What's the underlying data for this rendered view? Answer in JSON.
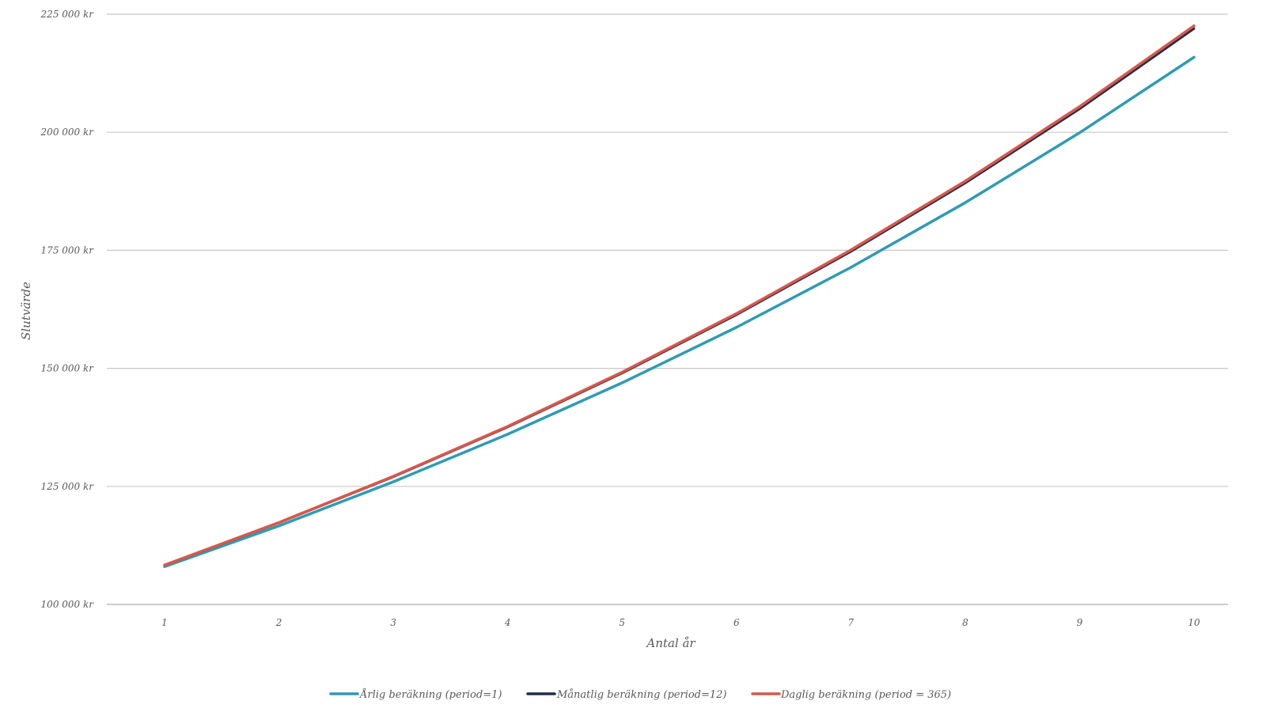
{
  "chart_data": {
    "type": "line",
    "x": [
      1,
      2,
      3,
      4,
      5,
      6,
      7,
      8,
      9,
      10
    ],
    "xlabel": "Antal år",
    "ylabel": "Slutvärde",
    "ylim": [
      100000,
      225000
    ],
    "yticks": [
      100000,
      125000,
      150000,
      175000,
      200000,
      225000
    ],
    "ytick_labels": [
      "100 000 kr",
      "125 000 kr",
      "150 000 kr",
      "175 000 kr",
      "200 000 kr",
      "225 000 kr"
    ],
    "grid": true,
    "legend_position": "bottom",
    "series": [
      {
        "name": "Årlig beräkning (period=1)",
        "color": "#2e9bb5",
        "values": [
          108000,
          116640,
          125971,
          136049,
          146933,
          158687,
          171382,
          185093,
          199900,
          215892
        ]
      },
      {
        "name": "Månatlig beräkning (period=12)",
        "color": "#1f2d4e",
        "values": [
          108300,
          117289,
          127024,
          137567,
          148985,
          161350,
          174742,
          189246,
          204953,
          221964
        ]
      },
      {
        "name": "Daglig beräkning (period = 365)",
        "color": "#d9574a",
        "values": [
          108328,
          117350,
          127124,
          137711,
          149180,
          161604,
          175064,
          189644,
          205439,
          222550
        ]
      }
    ]
  }
}
